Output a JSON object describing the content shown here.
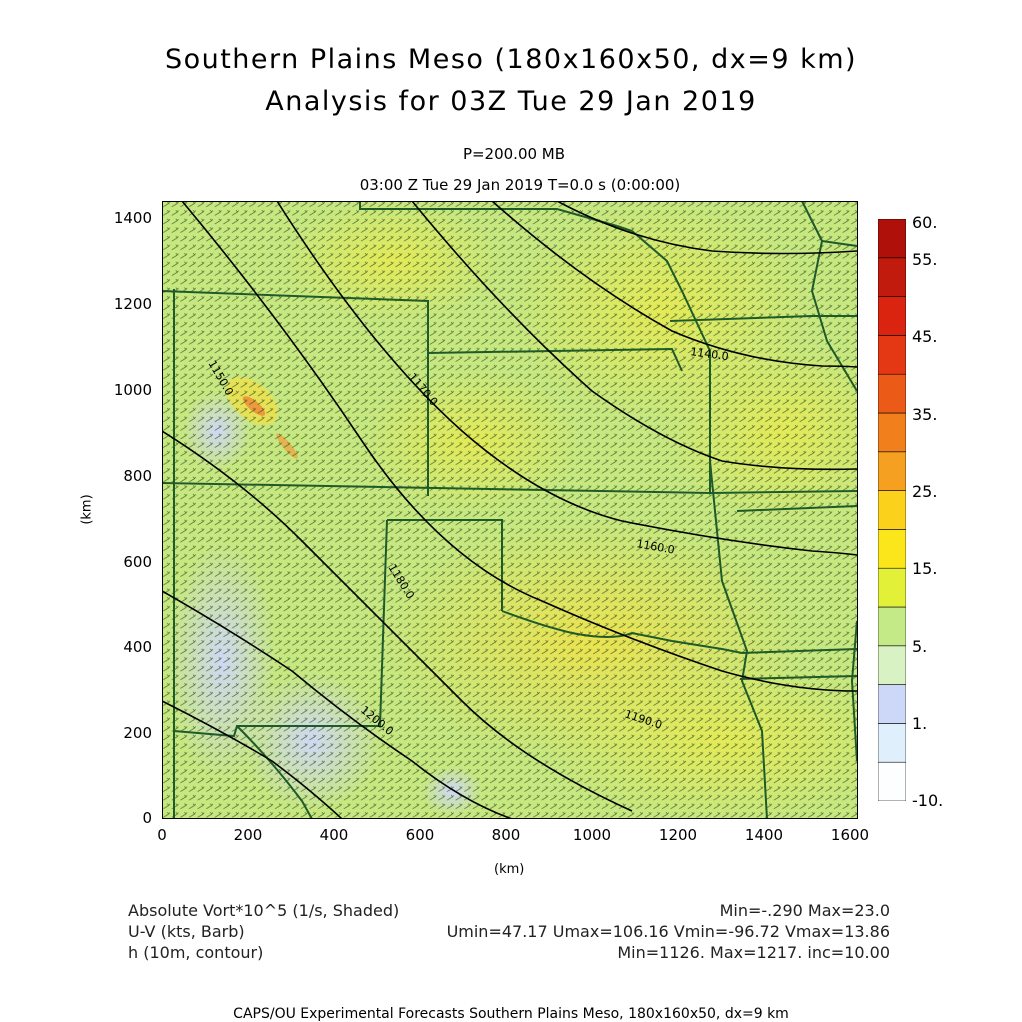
{
  "header": {
    "title_line1": "Southern Plains Meso (180x160x50, dx=9 km)",
    "title_line2": "Analysis for 03Z Tue 29 Jan 2019",
    "level": "P=200.00 MB",
    "time_line": "03:00 Z Tue 29 Jan 2019    T=0.0 s (0:00:00)"
  },
  "axes": {
    "y_ticks": [
      "1400",
      "1200",
      "1000",
      "800",
      "600",
      "400",
      "200",
      "0"
    ],
    "x_ticks": [
      "0",
      "200",
      "400",
      "600",
      "800",
      "1000",
      "1200",
      "1400",
      "1600"
    ],
    "x_unit": "(km)",
    "y_unit": "(km)",
    "x_range_km": [
      0,
      1620
    ],
    "y_range_km": [
      0,
      1440
    ]
  },
  "colorbar": {
    "labels": [
      "60.",
      "55.",
      "45.",
      "35.",
      "25.",
      "15.",
      "5.",
      "1.",
      "-10."
    ],
    "colors": [
      "#fdfeff",
      "#dfeffb",
      "#cdd7f7",
      "#d9f2c4",
      "#c3ea86",
      "#e3f038",
      "#fbe61c",
      "#fbd11c",
      "#f5a020",
      "#f07f1c",
      "#ec5a17",
      "#e43714",
      "#da2410",
      "#c01b0d",
      "#b0100a"
    ]
  },
  "contour_labels": [
    "1140.0",
    "1150.0",
    "1160.0",
    "1170.0",
    "1180.0",
    "1190.0",
    "1200.0"
  ],
  "footer": {
    "left": [
      "Absolute Vort*10^5 (1/s, Shaded)",
      "U-V (kts, Barb)",
      "h (10m, contour)"
    ],
    "right": [
      "Min=-.290 Max=23.0",
      "Umin=47.17 Umax=106.16 Vmin=-96.72 Vmax=13.86",
      "Min=1126. Max=1217. inc=10.00"
    ],
    "credit": "CAPS/OU Experimental Forecasts  Southern Plains Meso, 180x160x50, dx=9 km"
  },
  "style": {
    "field_base": "#c7e780",
    "field_warm": "#e3ec5a",
    "field_low": "#d4dcf5",
    "field_peak": "#ef8c3a",
    "border_color": "#1f5a2a",
    "contour_color": "#000000",
    "barb_color": "#2b4d1a"
  }
}
